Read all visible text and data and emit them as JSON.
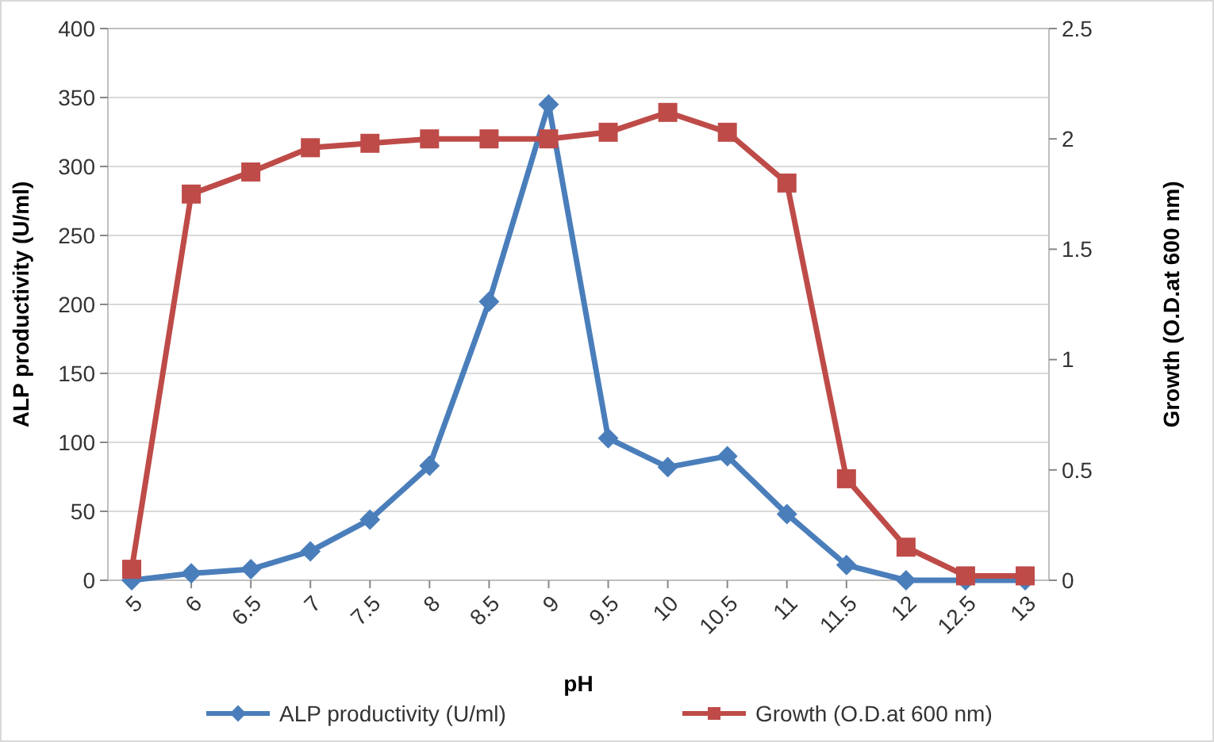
{
  "chart_data": {
    "type": "line",
    "xlabel": "pH",
    "ylabel": "ALP productivity (U/ml)",
    "y2label": "Growth (O.D.at 600 nm)",
    "categories": [
      "5",
      "6",
      "6.5",
      "7",
      "7.5",
      "8",
      "8.5",
      "9",
      "9.5",
      "10",
      "10.5",
      "11",
      "11.5",
      "12",
      "12.5",
      "13"
    ],
    "series": [
      {
        "name": "ALP productivity (U/ml)",
        "color": "#4a7ebb",
        "marker": "diamond",
        "values": [
          0,
          5,
          8,
          21,
          44,
          83,
          202,
          345,
          103,
          82,
          90,
          48,
          11,
          0,
          0,
          0
        ]
      },
      {
        "name": "Growth (O.D.at 600 nm)",
        "color": "#be4b48",
        "marker": "square",
        "axis": "y2",
        "values": [
          0.05,
          1.75,
          1.85,
          1.96,
          1.98,
          2.0,
          2.0,
          2.0,
          2.03,
          2.12,
          2.03,
          1.8,
          0.46,
          0.15,
          0.02,
          0.02
        ]
      }
    ],
    "ylim": [
      0,
      400
    ],
    "yticks": [
      0,
      50,
      100,
      150,
      200,
      250,
      300,
      350,
      400
    ],
    "y2lim": [
      0,
      2.5
    ],
    "y2ticks": [
      0,
      {
        "value": 0.5,
        "label": "0.5"
      },
      1,
      {
        "value": 1.5,
        "label": "1.5"
      },
      2,
      {
        "value": 2.5,
        "label": "2.5"
      }
    ],
    "grid": "y",
    "legend": "bottom"
  }
}
